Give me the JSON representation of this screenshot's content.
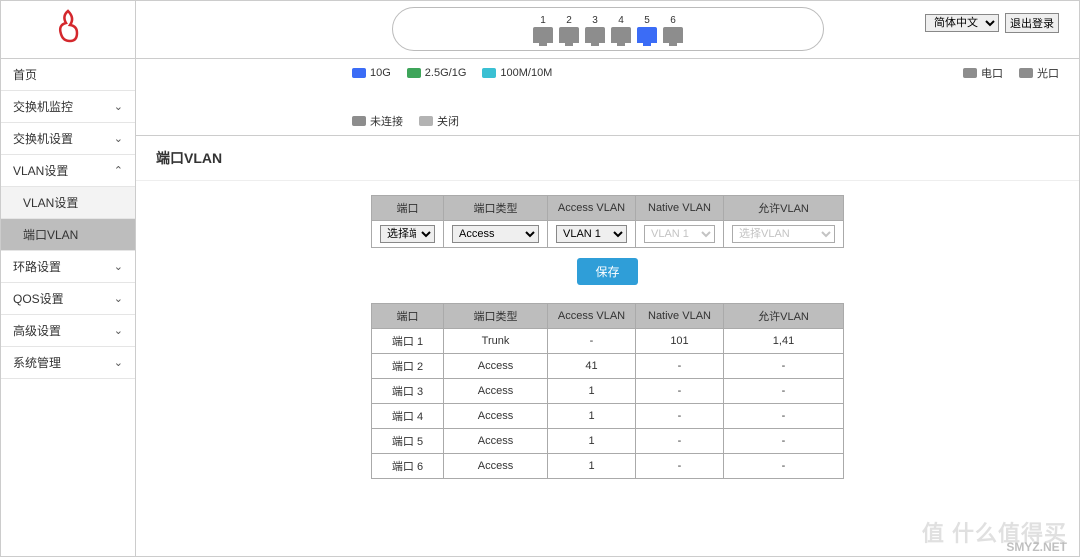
{
  "colors": {
    "brand": "#d4282d",
    "primary_btn": "#2f9ed8",
    "header_cell": "#bdbdbd",
    "border": "#aaaaaa",
    "port_10g": "#3b6cf6",
    "port_25g": "#3ea55a",
    "port_100m": "#3ac0d3",
    "port_dis": "#8d8d8d",
    "port_off": "#b3b3b3"
  },
  "top": {
    "lang_options": [
      "简体中文"
    ],
    "lang_selected": "简体中文",
    "logout": "退出登录"
  },
  "ports": {
    "list": [
      {
        "num": "1",
        "status_color": "#8d8d8d"
      },
      {
        "num": "2",
        "status_color": "#8d8d8d"
      },
      {
        "num": "3",
        "status_color": "#8d8d8d"
      },
      {
        "num": "4",
        "status_color": "#8d8d8d"
      },
      {
        "num": "5",
        "status_color": "#3b6cf6"
      },
      {
        "num": "6",
        "status_color": "#8d8d8d"
      }
    ]
  },
  "legend": {
    "l10g": "10G",
    "l25g": "2.5G/1G",
    "l100m": "100M/10M",
    "lelec": "电口",
    "lopt": "光口",
    "ldis": "未连接",
    "loff": "关闭"
  },
  "nav": {
    "home": "首页",
    "switch_monitor": "交换机监控",
    "switch_settings": "交换机设置",
    "vlan": "VLAN设置",
    "vlan_settings": "VLAN设置",
    "port_vlan": "端口VLAN",
    "loop": "环路设置",
    "qos": "QOS设置",
    "adv": "高级设置",
    "system": "系统管理"
  },
  "page": {
    "title": "端口VLAN"
  },
  "form": {
    "headers": {
      "port": "端口",
      "type": "端口类型",
      "access": "Access VLAN",
      "native": "Native VLAN",
      "allow": "允许VLAN"
    },
    "port_select": "选择端口",
    "type_select": "Access",
    "access_select": "VLAN 1",
    "native_select": "VLAN 1",
    "allow_select": "选择VLAN",
    "save": "保存"
  },
  "table": {
    "headers": {
      "port": "端口",
      "type": "端口类型",
      "access": "Access VLAN",
      "native": "Native VLAN",
      "allow": "允许VLAN"
    },
    "rows": [
      {
        "port": "端口 1",
        "type": "Trunk",
        "access": "-",
        "native": "101",
        "allow": "1,41"
      },
      {
        "port": "端口 2",
        "type": "Access",
        "access": "41",
        "native": "-",
        "allow": "-"
      },
      {
        "port": "端口 3",
        "type": "Access",
        "access": "1",
        "native": "-",
        "allow": "-"
      },
      {
        "port": "端口 4",
        "type": "Access",
        "access": "1",
        "native": "-",
        "allow": "-"
      },
      {
        "port": "端口 5",
        "type": "Access",
        "access": "1",
        "native": "-",
        "allow": "-"
      },
      {
        "port": "端口 6",
        "type": "Access",
        "access": "1",
        "native": "-",
        "allow": "-"
      }
    ]
  },
  "watermark": {
    "line1": "值 什么值得买",
    "line2": "SMYZ.NET"
  }
}
